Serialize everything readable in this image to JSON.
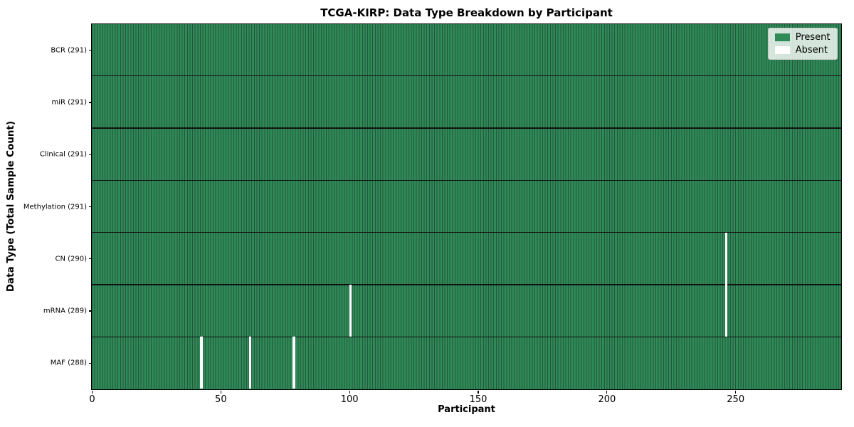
{
  "chart_data": {
    "type": "heatmap",
    "title": "TCGA-KIRP: Data Type Breakdown by Participant",
    "xlabel": "Participant",
    "ylabel": "Data Type (Total Sample Count)",
    "xlim": [
      0,
      291
    ],
    "n_participants": 291,
    "x_ticks": [
      0,
      50,
      100,
      150,
      200,
      250
    ],
    "grid": "row-separators-only",
    "legend_position": "upper-right",
    "rows": [
      {
        "label": "BCR (291)",
        "data_type": "BCR",
        "present_count": 291,
        "absent_participants": []
      },
      {
        "label": "miR (291)",
        "data_type": "miR",
        "present_count": 291,
        "absent_participants": []
      },
      {
        "label": "Clinical (291)",
        "data_type": "Clinical",
        "present_count": 291,
        "absent_participants": []
      },
      {
        "label": "Methylation (291)",
        "data_type": "Methylation",
        "present_count": 291,
        "absent_participants": []
      },
      {
        "label": "CN (290)",
        "data_type": "CN",
        "present_count": 290,
        "absent_participants": [
          246
        ]
      },
      {
        "label": "mRNA (289)",
        "data_type": "mRNA",
        "present_count": 289,
        "absent_participants": [
          100,
          246
        ]
      },
      {
        "label": "MAF (288)",
        "data_type": "MAF",
        "present_count": 288,
        "absent_participants": [
          42,
          61,
          78
        ]
      }
    ],
    "legend": [
      {
        "label": "Present",
        "color": "#2e8b57"
      },
      {
        "label": "Absent",
        "color": "#ffffff"
      }
    ],
    "colors": {
      "present": "#2e8b57",
      "bar_edge": "#26553c",
      "absent": "#ffffff",
      "row_line": "#111111",
      "spine": "#000000",
      "background": "#ffffff"
    }
  }
}
